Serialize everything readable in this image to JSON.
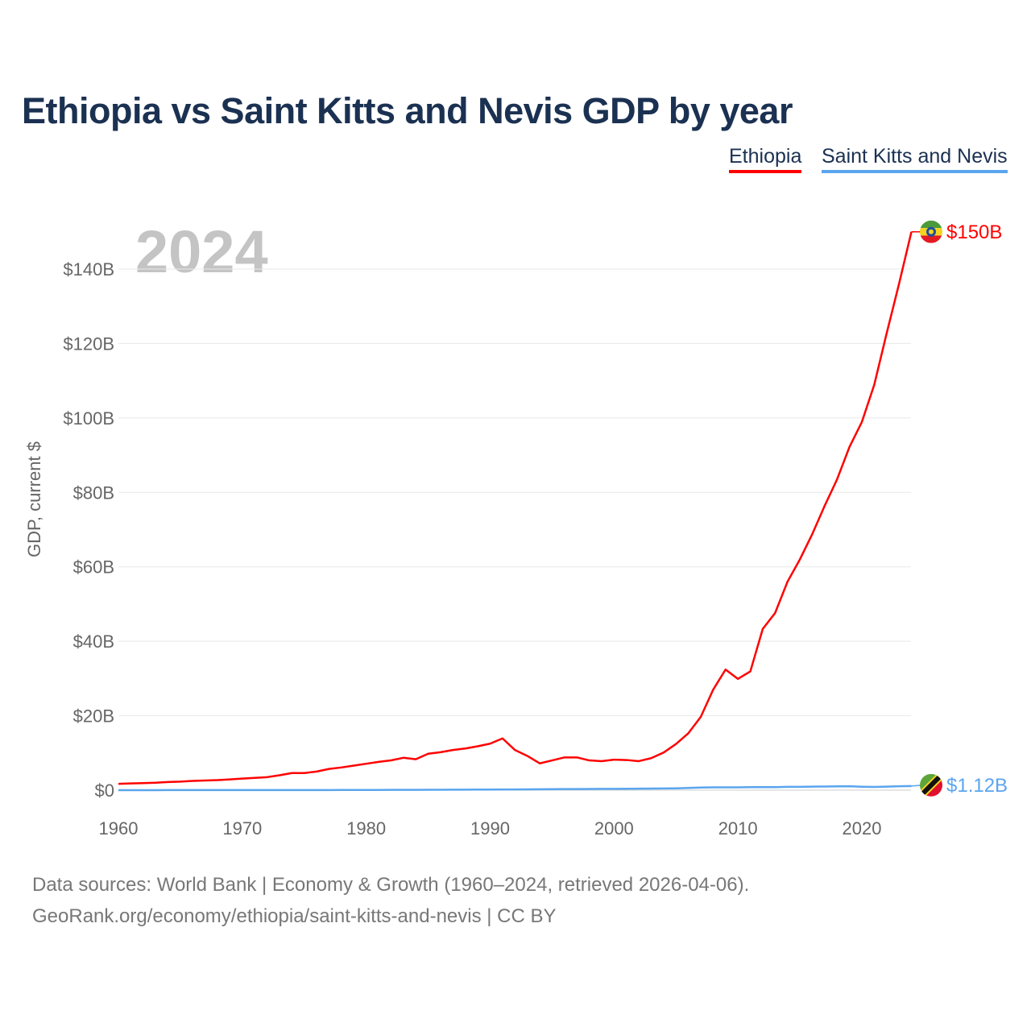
{
  "title": "Ethiopia vs Saint Kitts and Nevis GDP by year",
  "legend": [
    "Ethiopia",
    "Saint Kitts and Nevis"
  ],
  "footer": {
    "line1": "Data sources: World Bank | Economy & Growth (1960–2024, retrieved 2026-04-06).",
    "line2": "GeoRank.org/economy/ethiopia/saint-kitts-and-nevis | CC BY"
  },
  "chart_data": {
    "type": "line",
    "title": "Ethiopia vs Saint Kitts and Nevis GDP by year",
    "xlabel": "",
    "ylabel": "GDP, current $",
    "year_watermark": "2024",
    "xlim": [
      1960,
      2024
    ],
    "ylim": [
      0,
      150
    ],
    "x_ticks": [
      1960,
      1970,
      1980,
      1990,
      2000,
      2010,
      2020
    ],
    "y_ticks": [
      0,
      20,
      40,
      60,
      80,
      100,
      120,
      140
    ],
    "y_tick_labels": [
      "$0",
      "$20B",
      "$40B",
      "$60B",
      "$80B",
      "$100B",
      "$120B",
      "$140B"
    ],
    "grid": true,
    "legend_position": "top-right",
    "x_start": 1960,
    "series": [
      {
        "name": "Ethiopia",
        "color": "#ff0000",
        "end_label": "$150B",
        "flag": "ethiopia-flag-icon",
        "values": [
          1.7,
          1.8,
          1.9,
          2.0,
          2.2,
          2.3,
          2.5,
          2.6,
          2.7,
          2.9,
          3.1,
          3.3,
          3.5,
          4.0,
          4.6,
          4.6,
          5.0,
          5.7,
          6.1,
          6.6,
          7.1,
          7.6,
          8.0,
          8.7,
          8.3,
          9.8,
          10.2,
          10.8,
          11.2,
          11.8,
          12.5,
          13.9,
          10.8,
          9.2,
          7.2,
          8.0,
          8.8,
          8.8,
          8.0,
          7.8,
          8.2,
          8.1,
          7.8,
          8.6,
          10.1,
          12.4,
          15.3,
          19.7,
          27.0,
          32.4,
          29.9,
          31.9,
          43.3,
          47.6,
          56.0,
          62.0,
          68.8,
          76.4,
          83.5,
          92.2,
          98.9,
          108.9,
          122.7,
          136.0,
          150.0
        ]
      },
      {
        "name": "Saint Kitts and Nevis",
        "color": "#5aa5ef",
        "end_label": "$1.12B",
        "flag": "saint-kitts-and-nevis-flag-icon",
        "values": [
          0.012,
          0.012,
          0.013,
          0.013,
          0.014,
          0.015,
          0.016,
          0.017,
          0.018,
          0.019,
          0.02,
          0.022,
          0.024,
          0.027,
          0.03,
          0.033,
          0.036,
          0.04,
          0.045,
          0.05,
          0.055,
          0.062,
          0.07,
          0.076,
          0.085,
          0.095,
          0.11,
          0.13,
          0.14,
          0.15,
          0.16,
          0.18,
          0.2,
          0.22,
          0.25,
          0.27,
          0.29,
          0.31,
          0.33,
          0.35,
          0.36,
          0.39,
          0.41,
          0.42,
          0.45,
          0.5,
          0.6,
          0.7,
          0.77,
          0.76,
          0.75,
          0.8,
          0.8,
          0.82,
          0.88,
          0.9,
          0.95,
          0.98,
          1.02,
          1.05,
          0.92,
          0.86,
          0.96,
          1.06,
          1.12
        ]
      }
    ]
  }
}
